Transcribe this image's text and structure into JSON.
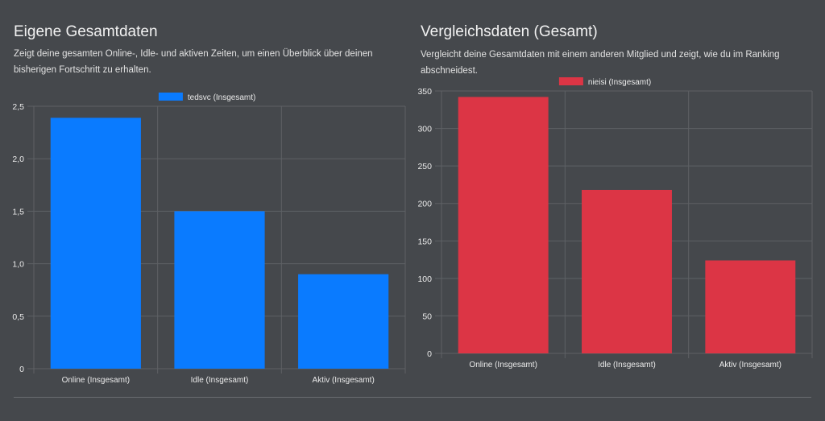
{
  "left": {
    "title": "Eigene Gesamtdaten",
    "description": "Zeigt deine gesamten Online-, Idle- und aktiven Zeiten, um einen Überblick über deinen bisherigen Fortschritt zu erhalten."
  },
  "right": {
    "title": "Vergleichsdaten (Gesamt)",
    "description": "Vergleicht deine Gesamtdaten mit einem anderen Mitglied und zeigt, wie du im Ranking abschneidest."
  },
  "chart_data": [
    {
      "type": "bar",
      "categories": [
        "Online (Insgesamt)",
        "Idle (Insgesamt)",
        "Aktiv (Insgesamt)"
      ],
      "series": [
        {
          "name": "tedsvc (Insgesamt)",
          "values": [
            2.39,
            1.5,
            0.9
          ],
          "color": "#0a7bff"
        }
      ],
      "ylim": [
        0,
        2.5
      ],
      "yticks": [
        "0",
        "0,5",
        "1,0",
        "1,5",
        "2,0",
        "2,5"
      ],
      "ytick_values": [
        0,
        0.5,
        1,
        1.5,
        2,
        2.5
      ],
      "legend": "top-center",
      "grid": true
    },
    {
      "type": "bar",
      "categories": [
        "Online (Insgesamt)",
        "Idle (Insgesamt)",
        "Aktiv (Insgesamt)"
      ],
      "series": [
        {
          "name": "nieisi (Insgesamt)",
          "values": [
            342,
            218,
            124
          ],
          "color": "#dc3545"
        }
      ],
      "ylim": [
        0,
        350
      ],
      "yticks": [
        "0",
        "50",
        "100",
        "150",
        "200",
        "250",
        "300",
        "350"
      ],
      "ytick_values": [
        0,
        50,
        100,
        150,
        200,
        250,
        300,
        350
      ],
      "legend": "top-center",
      "grid": true
    }
  ]
}
